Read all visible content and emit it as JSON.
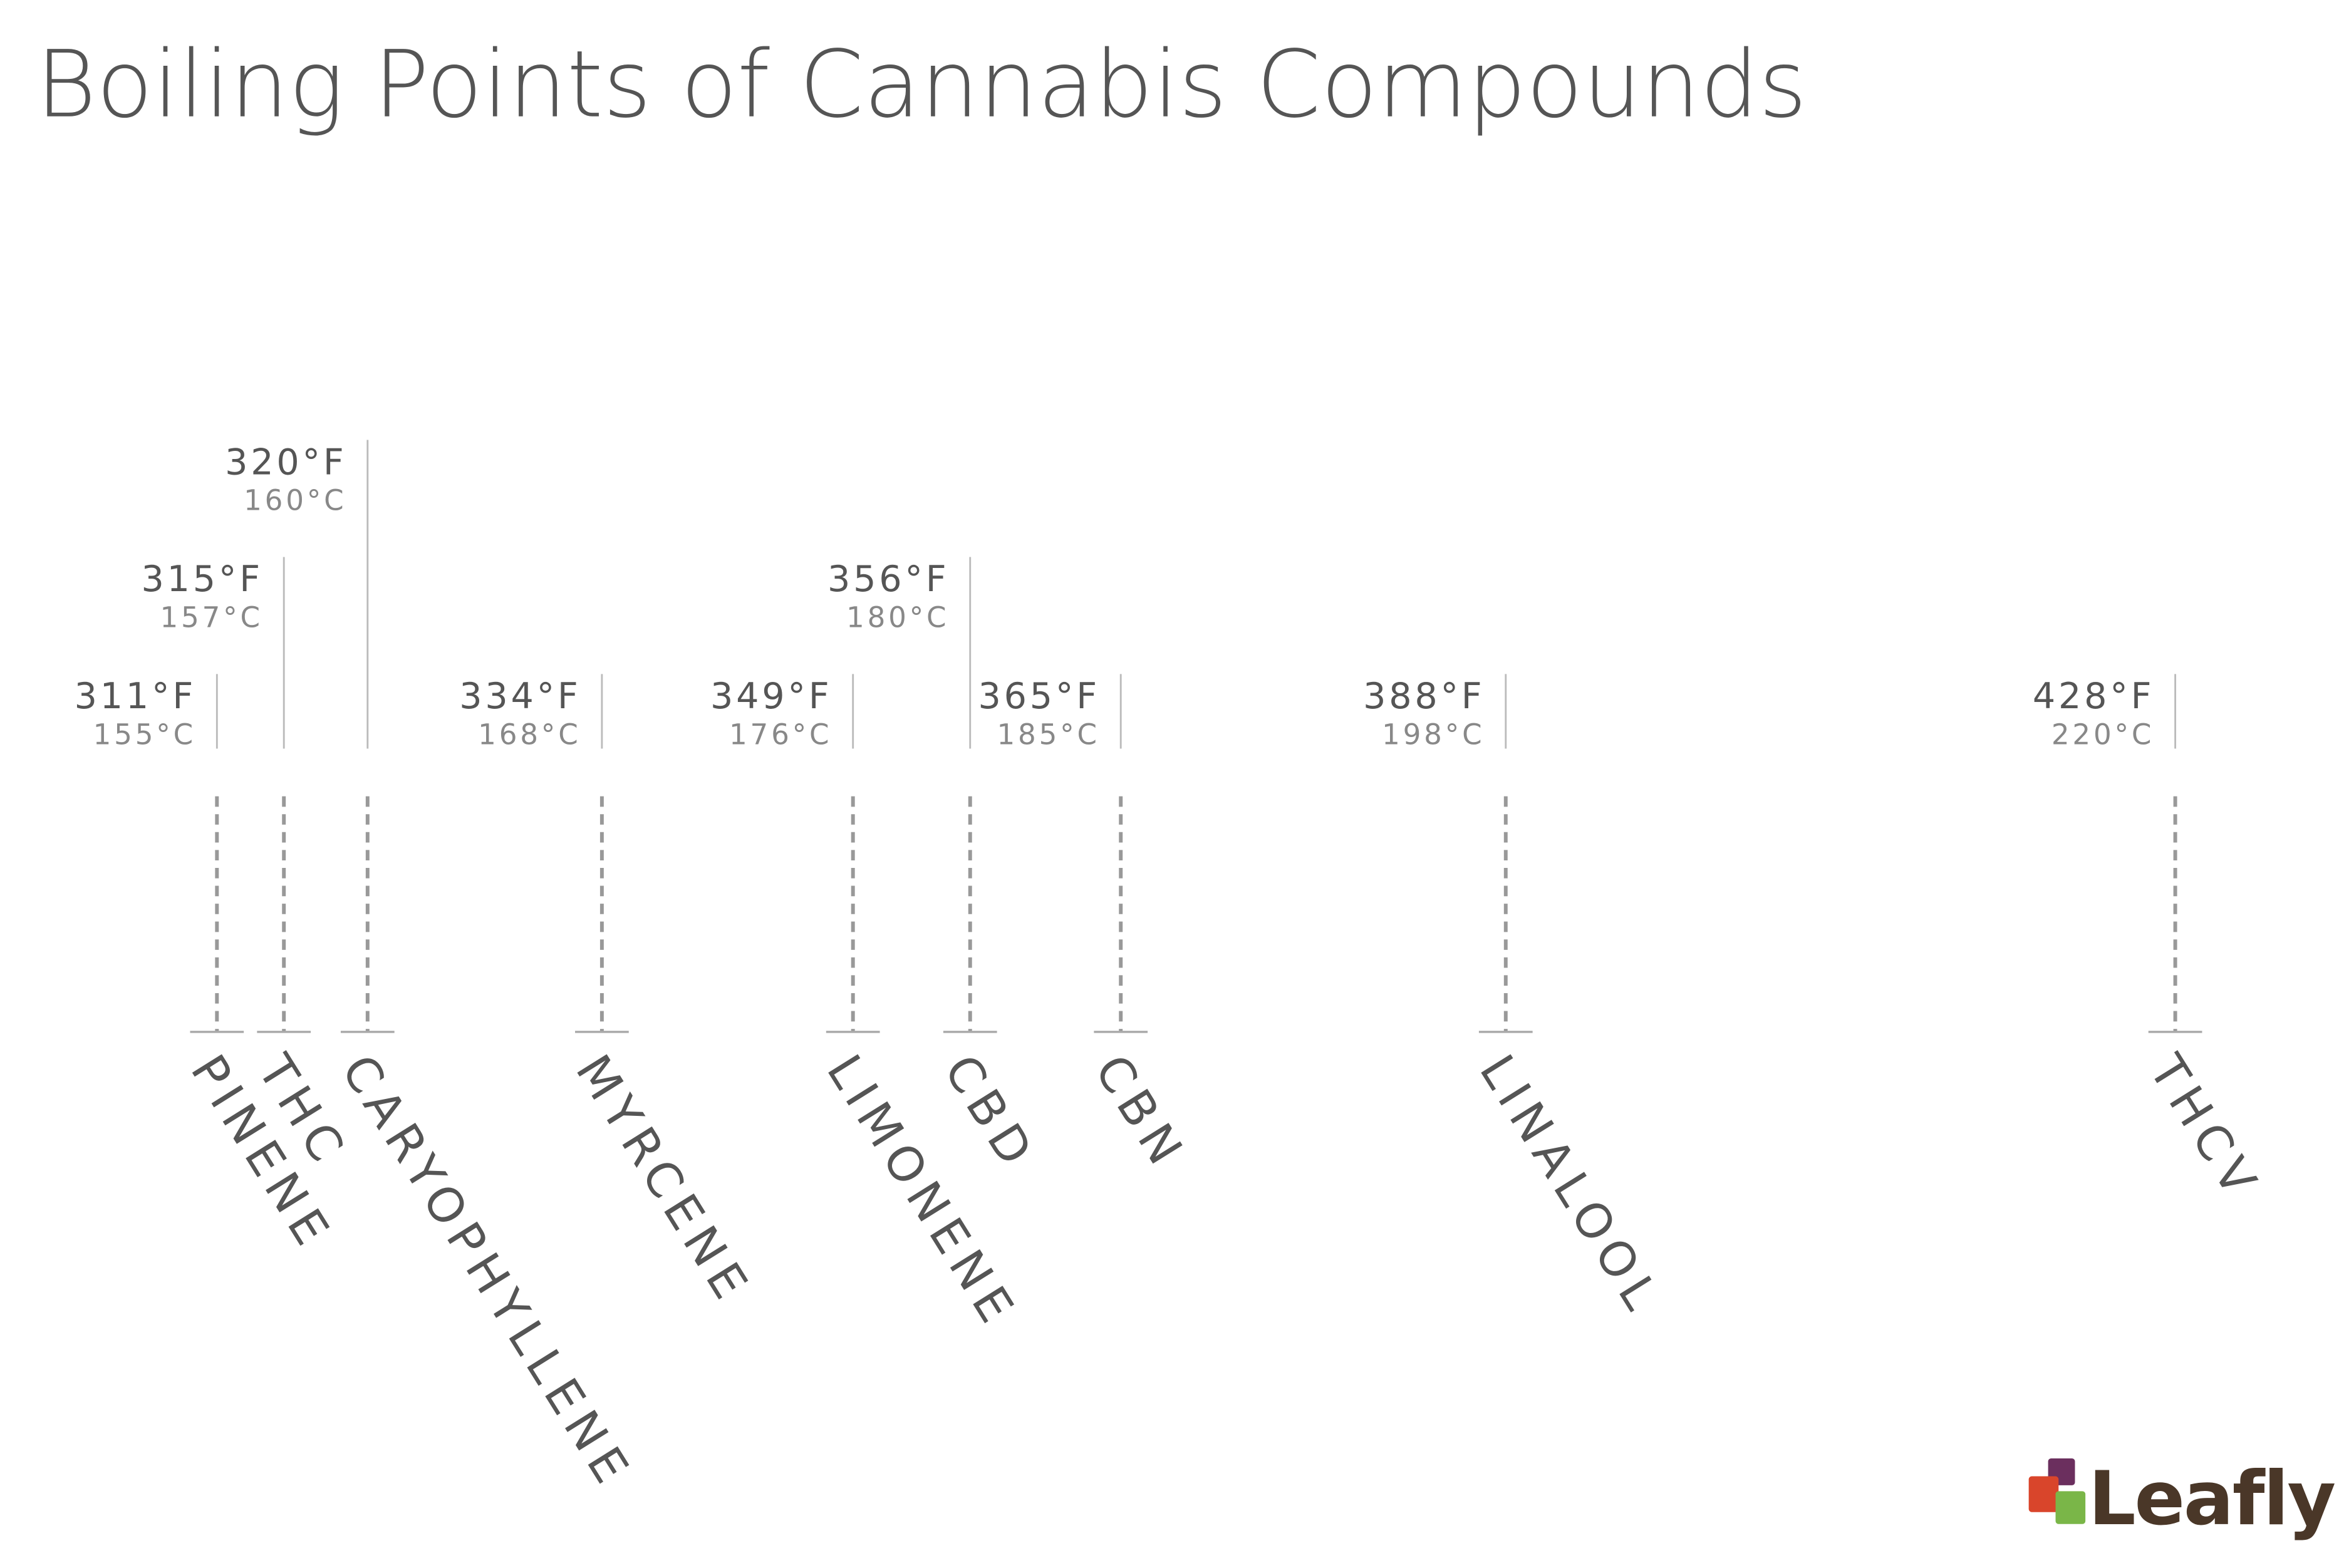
{
  "chart_data": {
    "type": "timeline",
    "title": "Boiling Points of Cannabis Compounds",
    "categories": [
      "PINENE",
      "THC",
      "CARYOPHYLLENE",
      "MYRCENE",
      "LIMONENE",
      "CBD",
      "CBN",
      "LINALOOL",
      "THCV"
    ],
    "values": [
      311,
      315,
      320,
      334,
      349,
      356,
      365,
      388,
      428
    ],
    "value_labels": [
      "311°F",
      "315°F",
      "320°F",
      "334°F",
      "349°F",
      "356°F",
      "365°F",
      "388°F",
      "428°F"
    ],
    "celsius_labels": [
      "155°C",
      "157°C",
      "160°C",
      "168°C",
      "176°C",
      "180°C",
      "185°C",
      "198°C",
      "220°C"
    ],
    "xlim": [
      300,
      436
    ],
    "colors": [
      "#d3df4b",
      "#e6b84a",
      "#f08a4a",
      "#e0542f",
      "#b83b3b",
      "#8a3359"
    ],
    "logo": "Leafly"
  }
}
